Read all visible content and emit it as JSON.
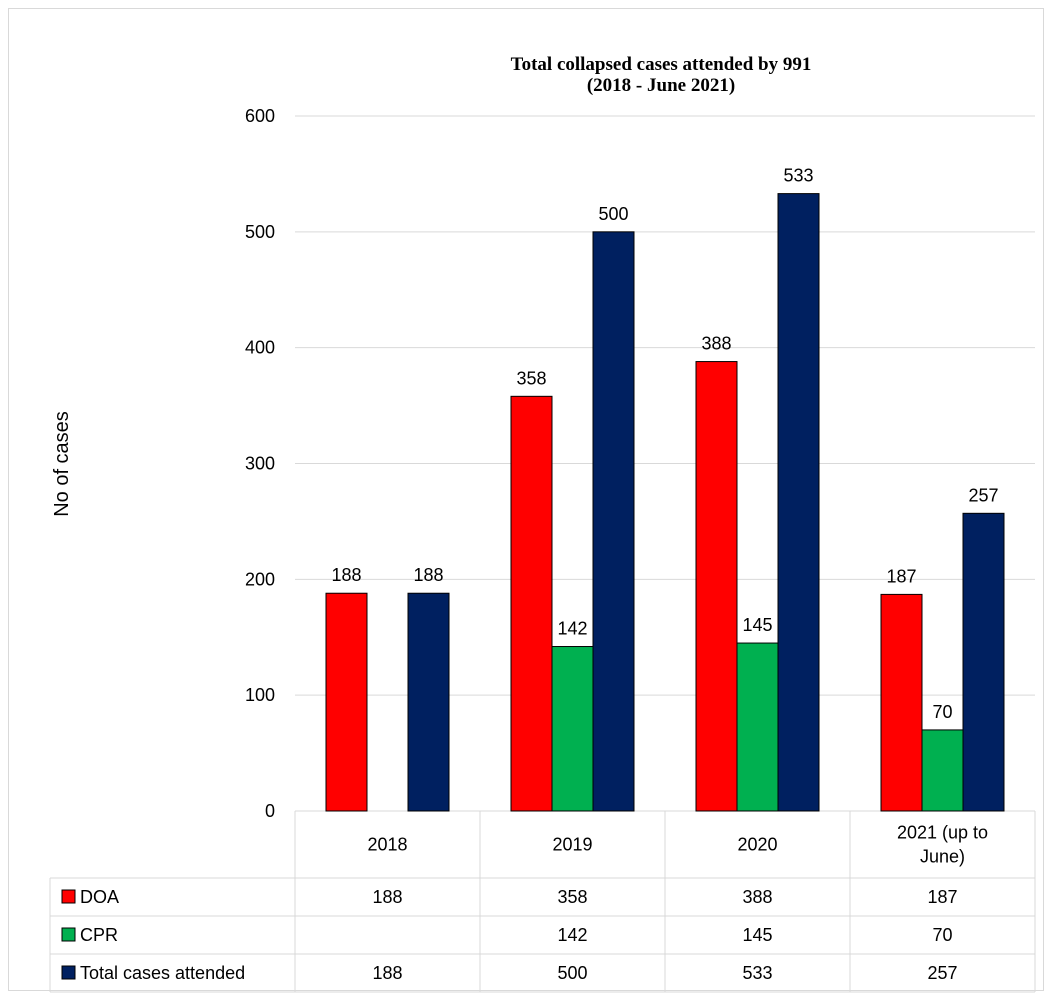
{
  "chart_data": {
    "type": "bar",
    "title_lines": [
      "Total collapsed cases attended by 991",
      "(2018 - June 2021)"
    ],
    "ylabel": "No of cases",
    "xlabel": "",
    "ylim": [
      0,
      600
    ],
    "yticks": [
      0,
      100,
      200,
      300,
      400,
      500,
      600
    ],
    "grid": true,
    "categories": [
      {
        "lines": [
          "2018"
        ]
      },
      {
        "lines": [
          "2019"
        ]
      },
      {
        "lines": [
          "2020"
        ]
      },
      {
        "lines": [
          "2021 (up to",
          "June)"
        ]
      }
    ],
    "series": [
      {
        "name": "DOA",
        "color": "#ff0000",
        "values": [
          188,
          358,
          388,
          187
        ]
      },
      {
        "name": "CPR",
        "color": "#00b050",
        "values": [
          null,
          142,
          145,
          70
        ]
      },
      {
        "name": "Total cases attended",
        "color": "#002060",
        "values": [
          188,
          500,
          533,
          257
        ]
      }
    ],
    "legend": "data-table-below"
  }
}
